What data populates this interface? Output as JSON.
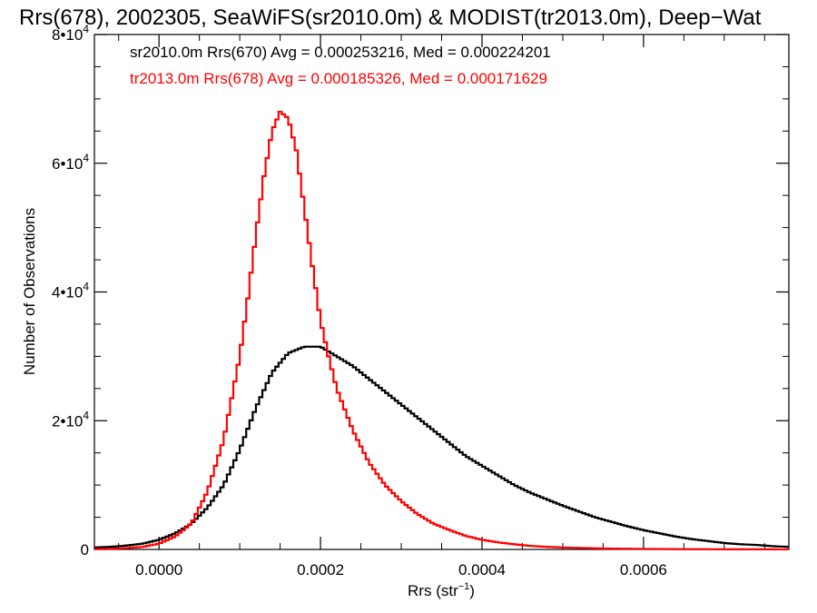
{
  "chart_data": {
    "type": "line",
    "title": "Rrs(678), 2002305, SeaWiFS(sr2010.0m) & MODIST(tr2013.0m), Deep−Wat",
    "xlabel": "Rrs (str",
    "xlabel_sup": "−1",
    "xlabel_suffix": ")",
    "ylabel": "Number of Observations",
    "xlim": [
      -8e-05,
      0.00078
    ],
    "ylim": [
      0,
      80000
    ],
    "x_ticks": [
      {
        "value": 0.0,
        "label": "0.0000"
      },
      {
        "value": 0.0002,
        "label": "0.0002"
      },
      {
        "value": 0.0004,
        "label": "0.0004"
      },
      {
        "value": 0.0006,
        "label": "0.0006"
      }
    ],
    "y_ticks": [
      {
        "value": 0,
        "base": "0",
        "exp": ""
      },
      {
        "value": 20000,
        "base": "2•10",
        "exp": "4"
      },
      {
        "value": 40000,
        "base": "4•10",
        "exp": "4"
      },
      {
        "value": 60000,
        "base": "6•10",
        "exp": "4"
      },
      {
        "value": 80000,
        "base": "8•10",
        "exp": "4"
      }
    ],
    "grid": false,
    "annotations": [
      {
        "text": "sr2010.0m Rrs(670) Avg = 0.000253216, Med = 0.000224201",
        "color": "#000000"
      },
      {
        "text": "tr2013.0m Rrs(678) Avg = 0.000185326, Med = 0.000171629",
        "color": "#ff0000"
      }
    ],
    "series": [
      {
        "color": "#000000",
        "x": [
          -8e-05,
          -6e-05,
          -4e-05,
          -2e-05,
          0.0,
          2e-05,
          4e-05,
          6e-05,
          8e-05,
          0.0001,
          0.00012,
          0.00014,
          0.00016,
          0.00018,
          0.0002,
          0.00022,
          0.00024,
          0.00026,
          0.00028,
          0.0003,
          0.00032,
          0.00034,
          0.00036,
          0.00038,
          0.0004,
          0.00042,
          0.00044,
          0.00046,
          0.00048,
          0.0005,
          0.00052,
          0.00054,
          0.00056,
          0.00058,
          0.0006,
          0.00062,
          0.00064,
          0.00066,
          0.00068,
          0.0007,
          0.00072,
          0.00074,
          0.00076,
          0.00078
        ],
        "y": [
          300,
          400,
          600,
          900,
          1500,
          2500,
          4000,
          6500,
          10000,
          15500,
          22000,
          27500,
          30500,
          31500,
          31500,
          30000,
          28500,
          26500,
          24500,
          22500,
          20500,
          18500,
          16500,
          14500,
          13000,
          11500,
          10000,
          8800,
          7800,
          6800,
          5900,
          5000,
          4300,
          3600,
          3000,
          2500,
          2000,
          1600,
          1300,
          1000,
          800,
          700,
          500,
          400
        ]
      },
      {
        "color": "#ff0000",
        "x": [
          -8e-05,
          -6e-05,
          -4e-05,
          -2e-05,
          0.0,
          2e-05,
          4e-05,
          6e-05,
          8e-05,
          0.0001,
          0.00011,
          0.00012,
          0.00013,
          0.00014,
          0.00015,
          0.00016,
          0.00017,
          0.00018,
          0.00019,
          0.0002,
          0.00021,
          0.00022,
          0.00024,
          0.00026,
          0.00028,
          0.0003,
          0.00032,
          0.00034,
          0.00036,
          0.00038,
          0.0004,
          0.00042,
          0.00044,
          0.00046,
          0.00048,
          0.0005,
          0.00055,
          0.0006,
          0.00065,
          0.0007,
          0.00078
        ],
        "y": [
          50,
          100,
          200,
          400,
          900,
          2000,
          4000,
          9000,
          17000,
          30000,
          39000,
          49000,
          58000,
          65000,
          68000,
          67000,
          62000,
          53000,
          44000,
          35500,
          30000,
          25000,
          18500,
          13500,
          10000,
          7500,
          5500,
          4000,
          3000,
          2100,
          1500,
          1100,
          800,
          550,
          400,
          300,
          150,
          80,
          40,
          20,
          10
        ]
      }
    ]
  }
}
